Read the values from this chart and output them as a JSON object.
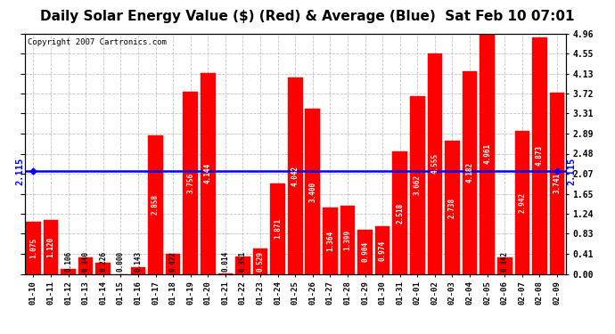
{
  "title": "Daily Solar Energy Value ($) (Red) & Average (Blue)  Sat Feb 10 07:01",
  "copyright": "Copyright 2007 Cartronics.com",
  "average": 2.115,
  "categories": [
    "01-10",
    "01-11",
    "01-12",
    "01-13",
    "01-14",
    "01-15",
    "01-16",
    "01-17",
    "01-18",
    "01-19",
    "01-20",
    "01-21",
    "01-22",
    "01-23",
    "01-24",
    "01-25",
    "01-26",
    "01-27",
    "01-28",
    "01-29",
    "01-30",
    "01-31",
    "02-01",
    "02-02",
    "02-03",
    "02-04",
    "02-05",
    "02-06",
    "02-07",
    "02-08",
    "02-09"
  ],
  "values": [
    1.075,
    1.12,
    0.106,
    0.34,
    0.226,
    0.0,
    0.143,
    2.858,
    0.422,
    3.756,
    4.144,
    0.014,
    0.351,
    0.529,
    1.871,
    4.042,
    3.4,
    1.364,
    1.399,
    0.904,
    0.974,
    2.518,
    3.662,
    4.555,
    2.738,
    4.182,
    4.961,
    0.342,
    2.942,
    4.873,
    3.741
  ],
  "bar_color": "#FF0000",
  "line_color": "#0000FF",
  "background_color": "#FFFFFF",
  "grid_color": "#BBBBBB",
  "ylabel_right": [
    "0.00",
    "0.41",
    "0.83",
    "1.24",
    "1.65",
    "2.07",
    "2.48",
    "2.89",
    "3.31",
    "3.72",
    "4.13",
    "4.55",
    "4.96"
  ],
  "ylim": [
    0,
    4.96
  ],
  "yticks": [
    0.0,
    0.41,
    0.83,
    1.24,
    1.65,
    2.07,
    2.48,
    2.89,
    3.31,
    3.72,
    4.13,
    4.55,
    4.96
  ],
  "title_fontsize": 11,
  "bar_edge_color": "#FF0000",
  "avg_label": "2.115",
  "avg_label_fontsize": 7.5,
  "value_fontsize": 5.5,
  "copyright_fontsize": 6.5
}
